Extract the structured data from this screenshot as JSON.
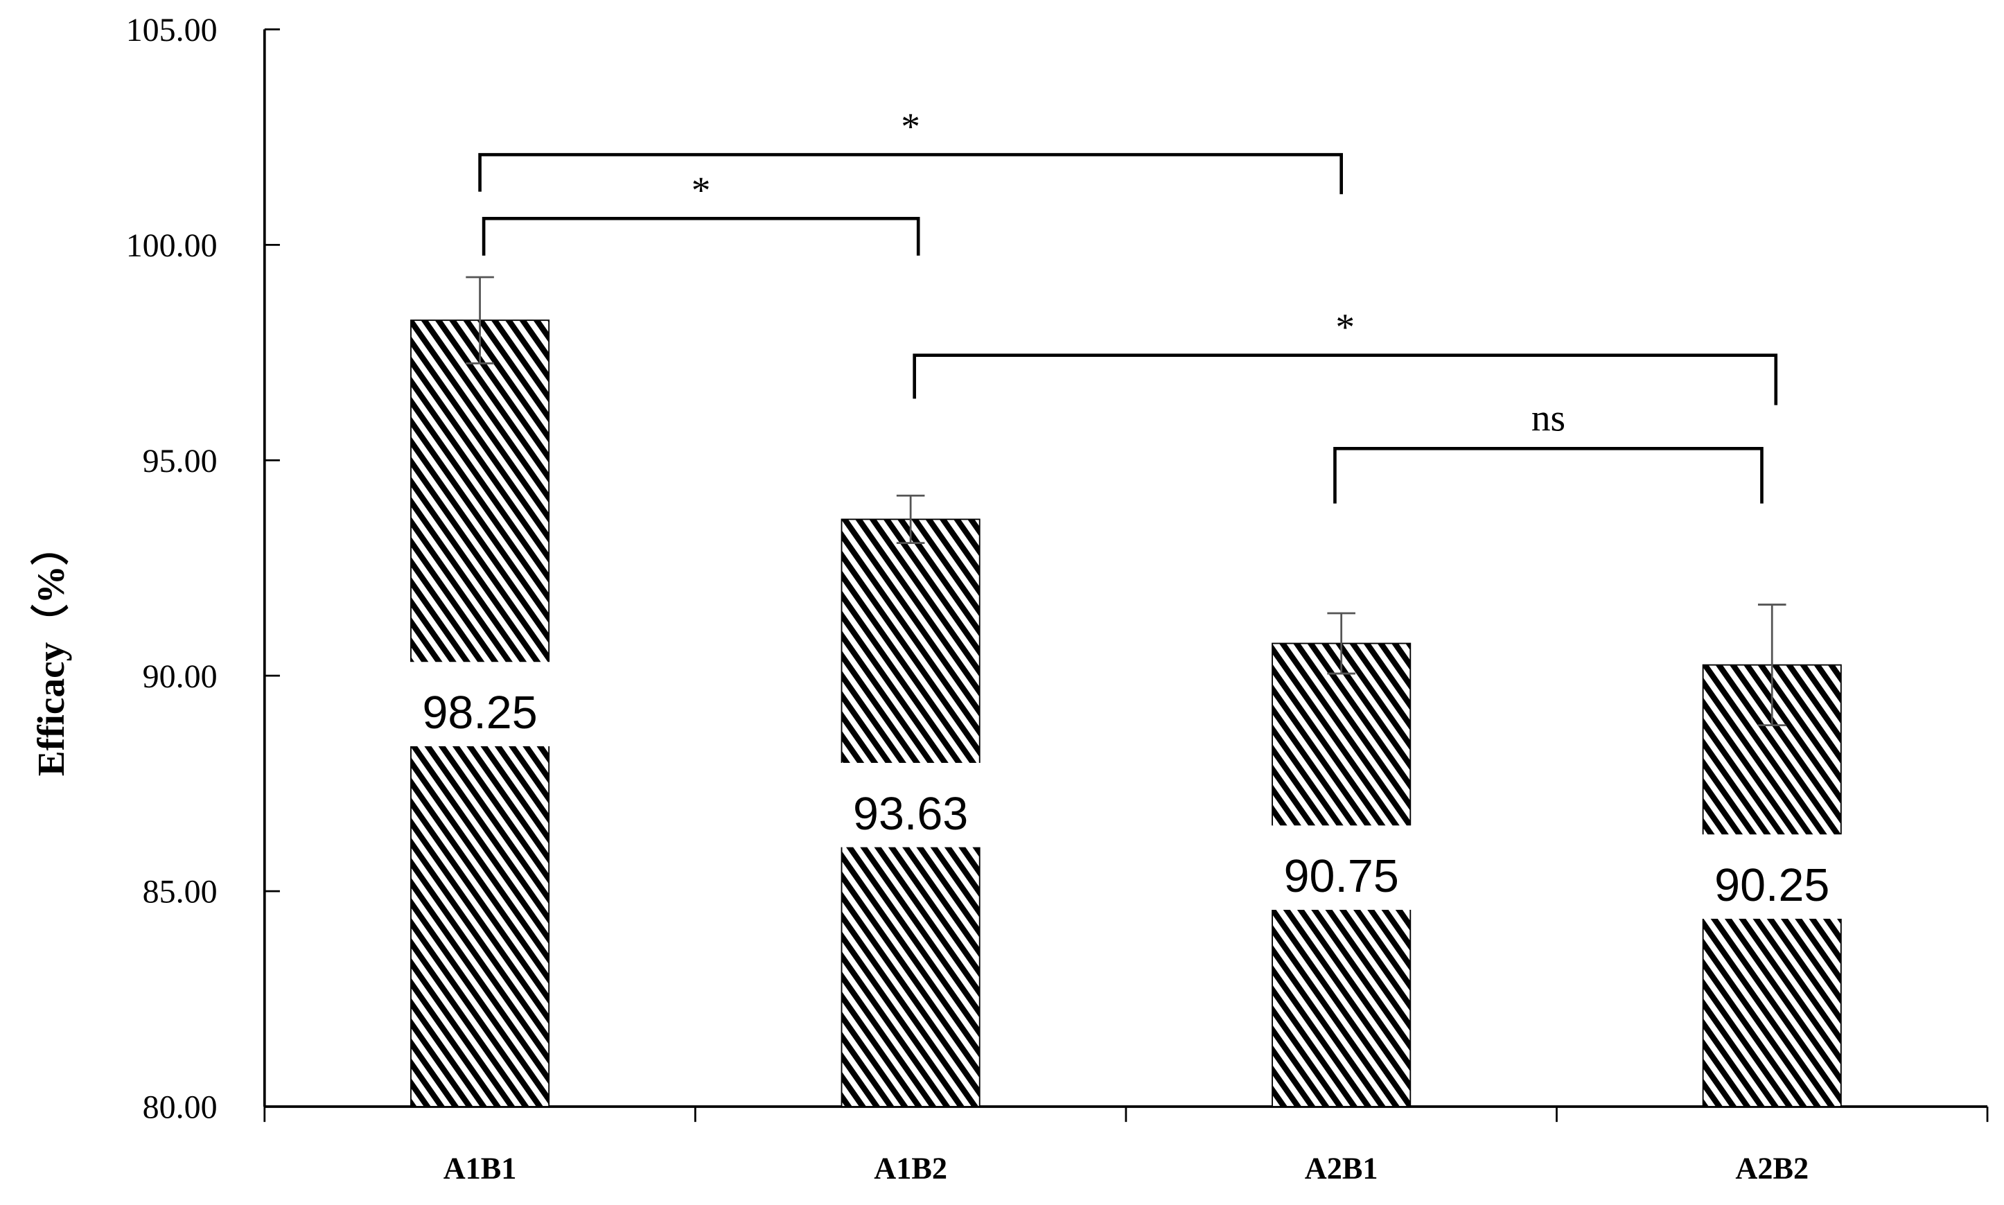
{
  "chart_data": {
    "type": "bar",
    "title": "",
    "xlabel": "",
    "ylabel": "Efficacy（%）",
    "ylim": [
      80,
      105
    ],
    "yticks": [
      "80.00",
      "85.00",
      "90.00",
      "95.00",
      "100.00",
      "105.00"
    ],
    "grid": false,
    "legend": null,
    "categories": [
      "A1B1",
      "A1B2",
      "A2B1",
      "A2B2"
    ],
    "values": [
      98.25,
      93.63,
      90.75,
      90.25
    ],
    "value_labels": [
      "98.25",
      "93.63",
      "90.75",
      "90.25"
    ],
    "error_bars": [
      1.0,
      0.55,
      0.7,
      1.4
    ],
    "bar_fill": "diagonal hatch, black on white",
    "significance": [
      {
        "from": "A1B1",
        "to": "A1B2",
        "label": "*"
      },
      {
        "from": "A1B1",
        "to": "A2B1",
        "label": "*"
      },
      {
        "from": "A1B2",
        "to": "A2B2",
        "label": "*"
      },
      {
        "from": "A2B1",
        "to": "A2B2",
        "label": "ns"
      }
    ]
  },
  "colors": {
    "axis": "#000000",
    "bar_hatch": "#000000",
    "bar_bg": "#ffffff",
    "error_bar": "#555555"
  }
}
